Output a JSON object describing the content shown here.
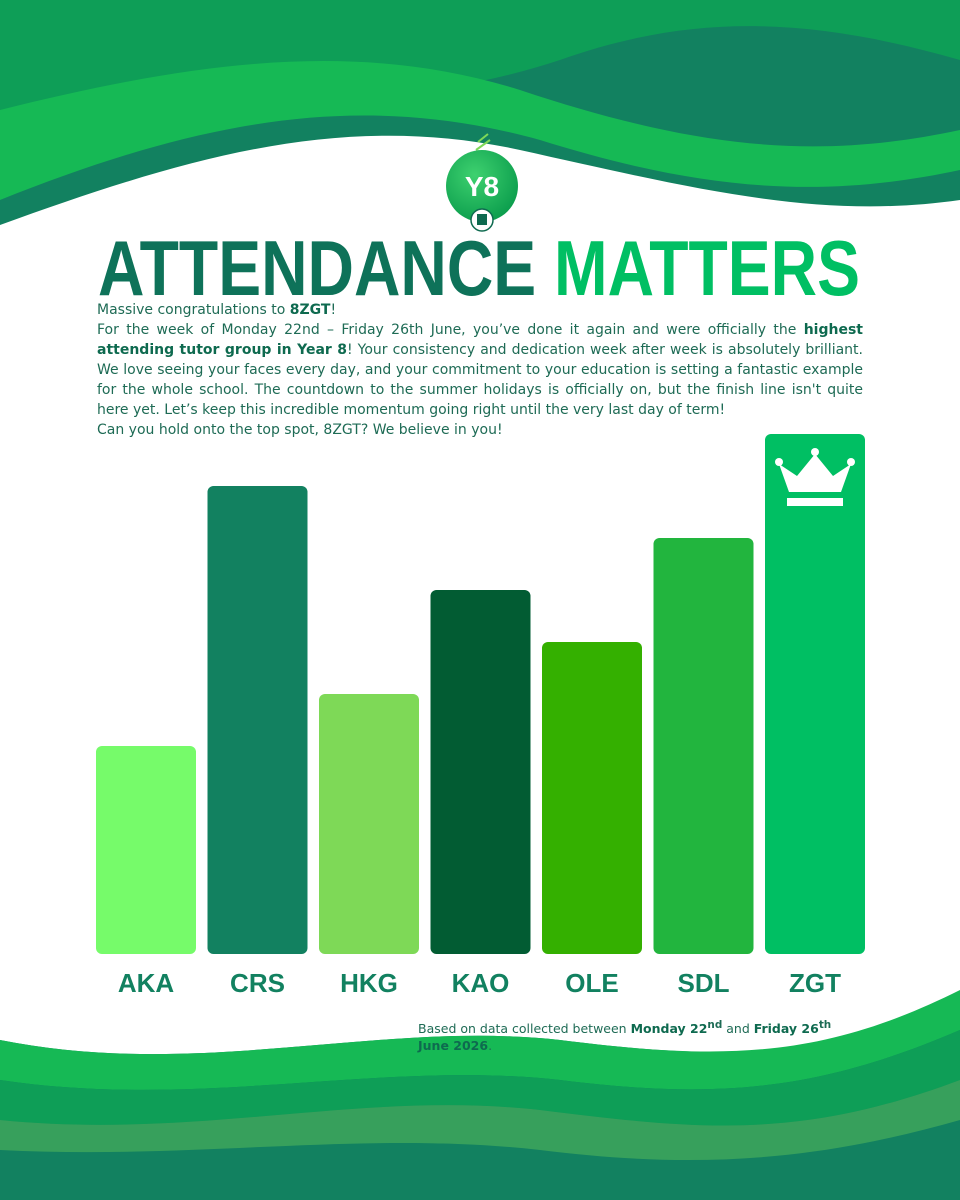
{
  "header": {
    "logo": "Y8",
    "title": [
      "ATTENDANCE",
      "MATTERS"
    ]
  },
  "body": {
    "paragraphs": [
      [
        {
          "text": "Massive congratulations to ",
          "bold": false
        },
        {
          "text": "8ZGT",
          "bold": true
        },
        {
          "text": "!",
          "bold": false
        }
      ],
      [
        {
          "text": "For the week of Monday 22nd – Friday 26th June, you’ve done it again and were officially the ",
          "bold": false
        },
        {
          "text": "highest attending tutor group in Year 8",
          "bold": true
        },
        {
          "text": "! Your consistency and dedication week after week is absolutely brilliant. We love seeing your faces every day, and your commitment to your education is setting a fantastic example for the whole school. The countdown to the summer holidays is officially on, but the finish line isn't quite here yet. Let’s keep this incredible momentum going right until the very last day of term!",
          "bold": false
        }
      ],
      [
        {
          "text": "Can you hold onto the top spot, 8ZGT? We believe in you!",
          "bold": false
        }
      ]
    ]
  },
  "chart_data": {
    "type": "bar",
    "categories": [
      "AKA",
      "CRS",
      "HKG",
      "KAO",
      "OLE",
      "SDL",
      "ZGT"
    ],
    "values": [
      4,
      9,
      5,
      7,
      6,
      8,
      10
    ],
    "colors": [
      "#76fb6a",
      "#128160",
      "#7ed957",
      "#025c33",
      "#34b000",
      "#22b53e",
      "#00bf63"
    ]
  },
  "footnote": [
    {
      "text": "Based on data collected between ",
      "bold": false
    },
    {
      "text": "Monday 22",
      "bold": true
    },
    {
      "text": "nd",
      "bold": true,
      "sup": true
    },
    {
      "text": " and ",
      "bold": false
    },
    {
      "text": "Friday 26",
      "bold": true
    },
    {
      "text": "th",
      "bold": true,
      "sup": true
    },
    {
      "text": " June 2026",
      "bold": true
    },
    {
      "text": ".",
      "bold": false
    }
  ]
}
